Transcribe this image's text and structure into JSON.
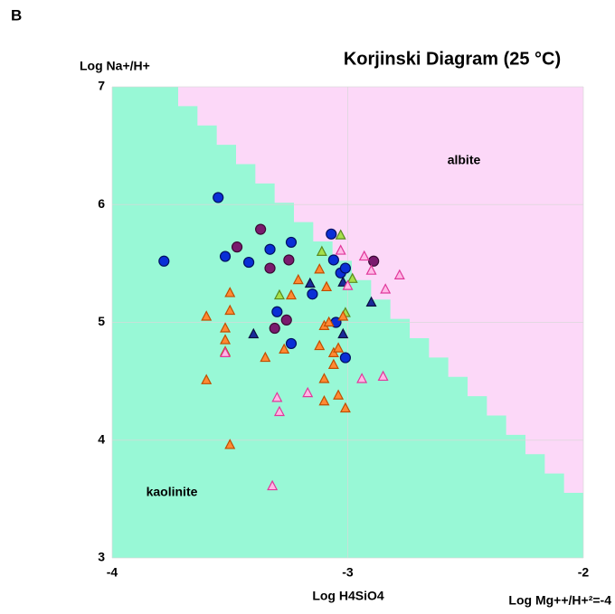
{
  "panel_label": "B",
  "chart_data": {
    "type": "scatter",
    "title": "Korjinski Diagram (25 °C)",
    "x_label": "Log H4SiO4",
    "y_label": "Log Na+/H+",
    "annotations": [
      "Log Mg++/H+²=-4",
      "albite",
      "kaolinite"
    ],
    "xlim": [
      -4,
      -2
    ],
    "xticks": [
      -4,
      -3,
      -2
    ],
    "ylim": [
      3,
      7
    ],
    "yticks": [
      3,
      4,
      5,
      6,
      7
    ],
    "grid": true,
    "series": [
      {
        "marker": "circle",
        "color": "#0a2fd6",
        "stroke": "#001060",
        "x": [
          -3.78,
          -3.55,
          -3.52,
          -3.42,
          -3.33,
          -3.24,
          -3.3,
          -3.24,
          -3.15,
          -3.07,
          -3.06,
          -3.03,
          -3.01,
          -3.05,
          -3.01
        ],
        "values": [
          5.52,
          6.06,
          5.56,
          5.51,
          5.62,
          5.68,
          5.09,
          4.82,
          5.24,
          5.75,
          5.53,
          5.42,
          5.46,
          5.0,
          4.7
        ]
      },
      {
        "marker": "circle",
        "color": "#7a1a6e",
        "stroke": "#3a0a34",
        "x": [
          -3.37,
          -3.47,
          -3.33,
          -3.25,
          -3.31,
          -3.26,
          -2.89
        ],
        "values": [
          5.79,
          5.64,
          5.46,
          5.53,
          4.95,
          5.02,
          5.52
        ]
      },
      {
        "marker": "triangle",
        "color": "#1a2a9a",
        "stroke": "#0a0f40",
        "x": [
          -3.4,
          -3.16,
          -3.02,
          -3.02,
          -2.9
        ],
        "values": [
          4.9,
          5.33,
          5.34,
          4.9,
          5.17
        ]
      },
      {
        "marker": "triangle",
        "color": "#a6e04a",
        "stroke": "#5a8a20",
        "x": [
          -3.29,
          -3.11,
          -3.03,
          -2.98,
          -3.01
        ],
        "values": [
          5.23,
          5.6,
          5.74,
          5.37,
          5.08
        ]
      },
      {
        "marker": "triangle",
        "color": "#ff8a33",
        "stroke": "#c04e00",
        "x": [
          -3.6,
          -3.6,
          -3.5,
          -3.5,
          -3.52,
          -3.52,
          -3.52,
          -3.5,
          -3.35,
          -3.27,
          -3.24,
          -3.21,
          -3.12,
          -3.09,
          -3.1,
          -3.08,
          -3.12,
          -3.1,
          -3.1,
          -3.06,
          -3.06,
          -3.04,
          -3.02,
          -3.04,
          -3.01
        ],
        "values": [
          5.05,
          4.51,
          5.25,
          5.1,
          4.95,
          4.85,
          4.75,
          3.96,
          4.7,
          4.77,
          5.23,
          5.36,
          5.45,
          5.3,
          4.97,
          5.0,
          4.8,
          4.52,
          4.33,
          4.74,
          4.64,
          4.78,
          5.05,
          4.38,
          4.27
        ]
      },
      {
        "marker": "triangle",
        "color": "#ffb8e6",
        "stroke": "#e0389a",
        "x": [
          -3.52,
          -3.3,
          -3.29,
          -3.17,
          -3.32,
          -3.03,
          -3.0,
          -2.93,
          -2.9,
          -2.78,
          -2.84,
          -2.94,
          -2.85
        ],
        "values": [
          4.74,
          4.36,
          4.24,
          4.4,
          3.61,
          5.61,
          5.31,
          5.56,
          5.44,
          5.4,
          5.28,
          4.52,
          4.54
        ]
      }
    ]
  }
}
